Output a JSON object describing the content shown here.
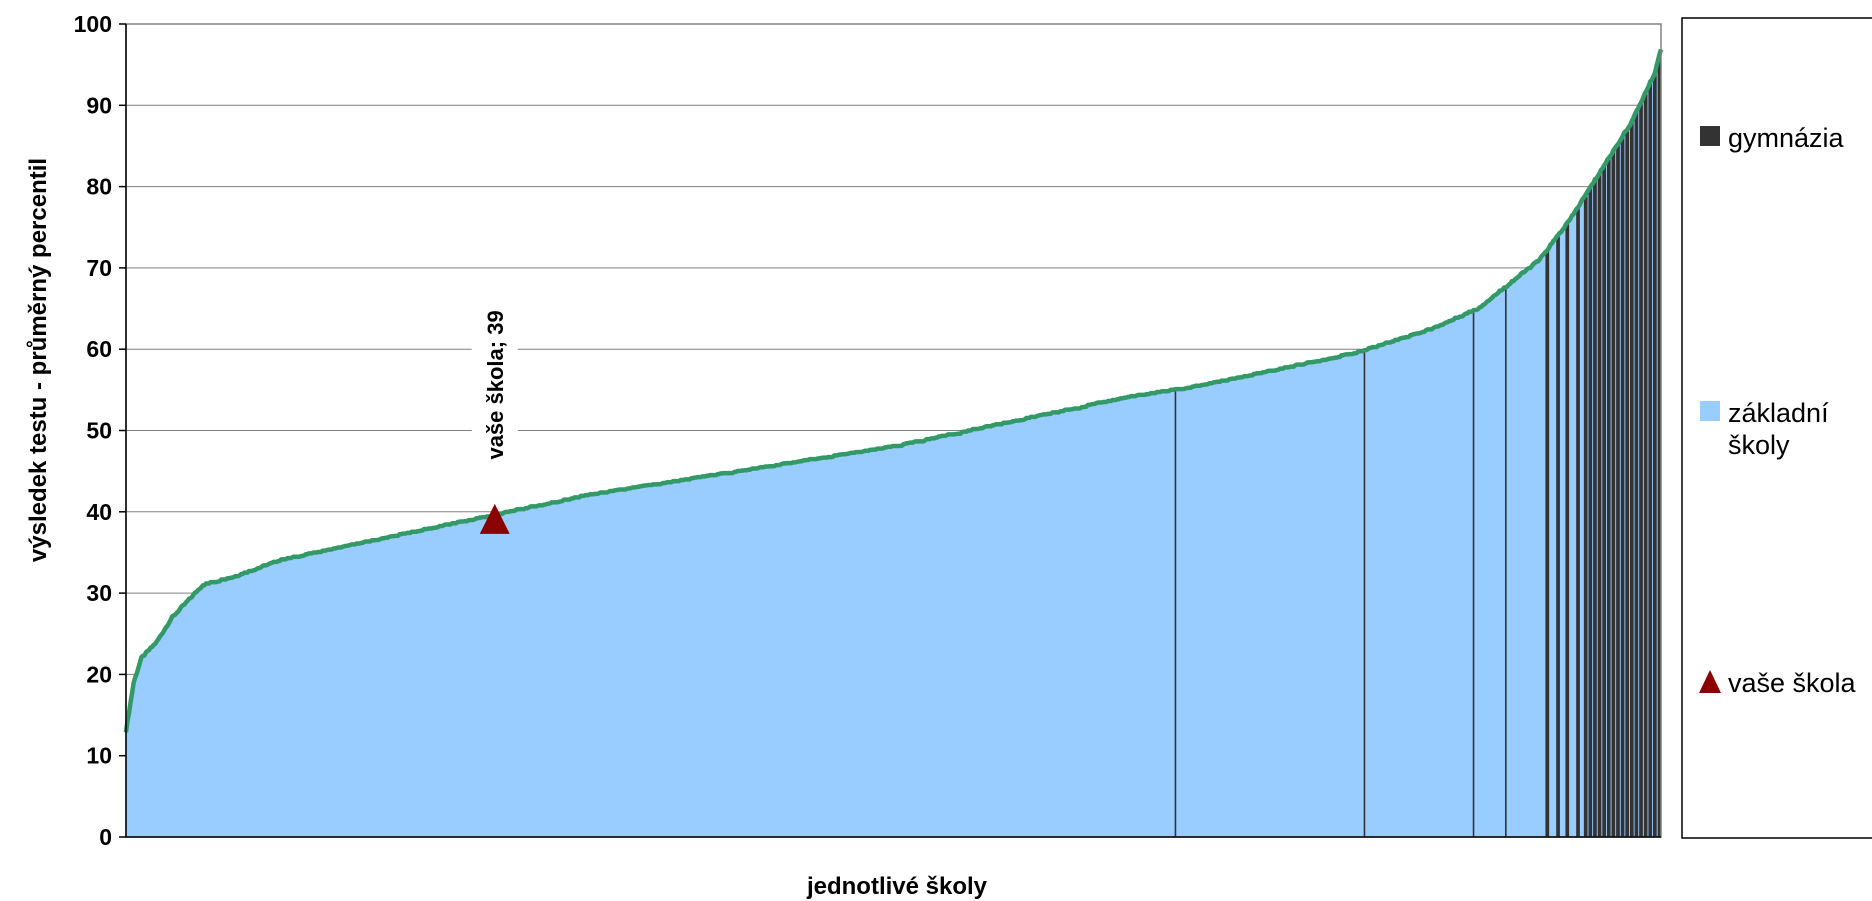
{
  "chart_data": {
    "type": "area",
    "xlabel": "jednotlivé školy",
    "ylabel": "výsledek testu - průměrný percentil",
    "ylim": [
      0,
      100
    ],
    "yticks": [
      0,
      10,
      20,
      30,
      40,
      50,
      60,
      70,
      80,
      90,
      100
    ],
    "grid": true,
    "legend_position": "right",
    "series_count": 1000,
    "curve": {
      "index": [
        0,
        5,
        10,
        20,
        30,
        50,
        70,
        100,
        150,
        200,
        250,
        300,
        350,
        400,
        450,
        500,
        550,
        600,
        650,
        700,
        750,
        800,
        850,
        880,
        900,
        920,
        940,
        950,
        960,
        970,
        980,
        990,
        995,
        999
      ],
      "value": [
        13,
        19,
        22,
        24,
        27,
        31,
        32,
        34,
        36,
        38,
        40,
        42,
        43.5,
        45,
        46.5,
        48,
        50,
        52,
        54,
        55.5,
        57.5,
        59.5,
        62.5,
        65,
        68,
        71,
        76,
        79,
        82,
        85,
        88,
        92,
        94,
        97
      ]
    },
    "series": [
      {
        "name": "gymnázia",
        "color": "#333333"
      },
      {
        "name": "základní školy",
        "color": "#99ccff"
      },
      {
        "name": "vaše škola",
        "color": "#8b0000",
        "marker": "triangle"
      }
    ],
    "gymnazia_indices": [
      683,
      806,
      877,
      898,
      925,
      932,
      938,
      945,
      950,
      953,
      956,
      959,
      962,
      965,
      968,
      971,
      974,
      977,
      980,
      983,
      986,
      989,
      992,
      995,
      998
    ],
    "your_school": {
      "index": 240,
      "value": 39,
      "label": "vaše škola; 39"
    },
    "line_color": "#339966",
    "legend": {
      "items": [
        {
          "lines": [
            "gymnázia"
          ],
          "color": "#333333",
          "symbol": "square"
        },
        {
          "lines": [
            "základní",
            "školy"
          ],
          "color": "#99ccff",
          "symbol": "square"
        },
        {
          "lines": [
            "vaše škola"
          ],
          "color": "#8b0000",
          "symbol": "triangle"
        }
      ]
    }
  }
}
